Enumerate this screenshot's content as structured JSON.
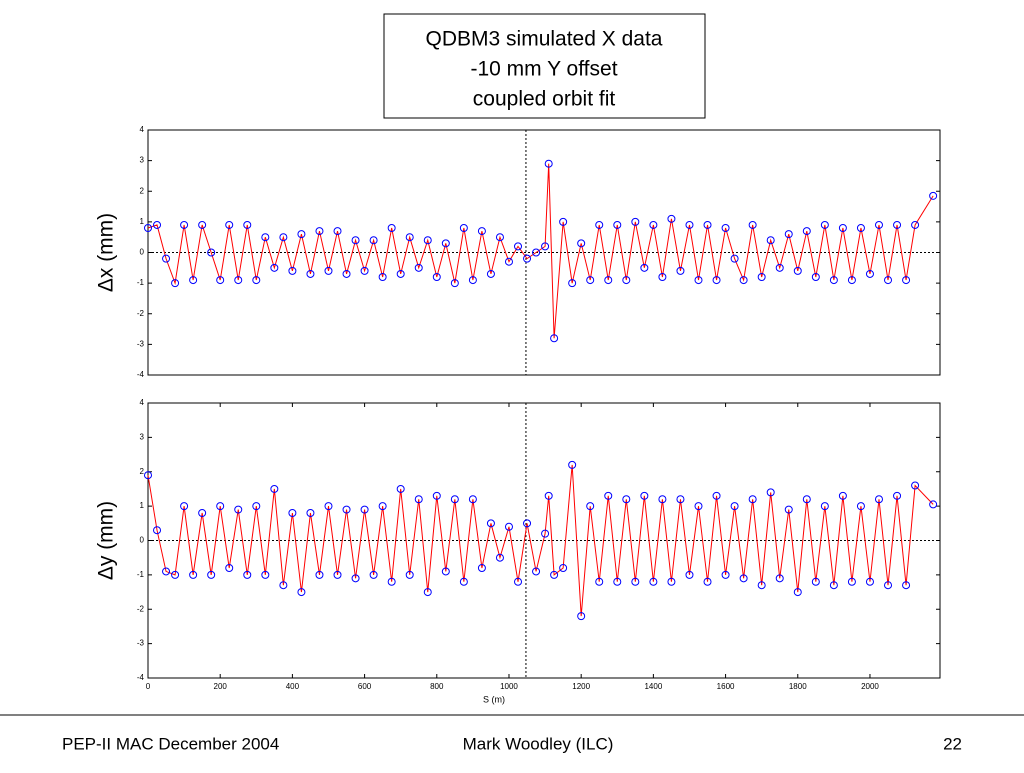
{
  "title_box": [
    "QDBM3 simulated X data",
    "-10 mm Y offset",
    "coupled orbit fit"
  ],
  "chart_data": [
    {
      "type": "line",
      "ylabel": "Δx (mm)",
      "xlim": [
        0,
        2194
      ],
      "ylim": [
        -4,
        4
      ],
      "yticks": [
        -4,
        -3,
        -2,
        -1,
        0,
        1,
        2,
        3,
        4
      ],
      "vline": 1047,
      "hline": 0,
      "marker_color": "#0000ff",
      "line_color": "#ff0000",
      "x": [
        0,
        25,
        50,
        75,
        100,
        125,
        150,
        175,
        200,
        225,
        250,
        275,
        300,
        325,
        350,
        375,
        400,
        425,
        450,
        475,
        500,
        525,
        550,
        575,
        600,
        625,
        650,
        675,
        700,
        725,
        750,
        775,
        800,
        825,
        850,
        875,
        900,
        925,
        950,
        975,
        1000,
        1025,
        1050,
        1075,
        1100,
        1110,
        1125,
        1150,
        1175,
        1200,
        1225,
        1250,
        1275,
        1300,
        1325,
        1350,
        1375,
        1400,
        1425,
        1450,
        1475,
        1500,
        1525,
        1550,
        1575,
        1600,
        1625,
        1650,
        1675,
        1700,
        1725,
        1750,
        1775,
        1800,
        1825,
        1850,
        1875,
        1900,
        1925,
        1950,
        1975,
        2000,
        2025,
        2050,
        2075,
        2100,
        2125,
        2175
      ],
      "values": [
        0.8,
        0.9,
        -0.2,
        -1.0,
        0.9,
        -0.9,
        0.9,
        0.0,
        -0.9,
        0.9,
        -0.9,
        0.9,
        -0.9,
        0.5,
        -0.5,
        0.5,
        -0.6,
        0.6,
        -0.7,
        0.7,
        -0.6,
        0.7,
        -0.7,
        0.4,
        -0.6,
        0.4,
        -0.8,
        0.8,
        -0.7,
        0.5,
        -0.5,
        0.4,
        -0.8,
        0.3,
        -1.0,
        0.8,
        -0.9,
        0.7,
        -0.7,
        0.5,
        -0.3,
        0.2,
        -0.2,
        0.0,
        0.2,
        2.9,
        -2.8,
        1.0,
        -1.0,
        0.3,
        -0.9,
        0.9,
        -0.9,
        0.9,
        -0.9,
        1.0,
        -0.5,
        0.9,
        -0.8,
        1.1,
        -0.6,
        0.9,
        -0.9,
        0.9,
        -0.9,
        0.8,
        -0.2,
        -0.9,
        0.9,
        -0.8,
        0.4,
        -0.5,
        0.6,
        -0.6,
        0.7,
        -0.8,
        0.9,
        -0.9,
        0.8,
        -0.9,
        0.8,
        -0.7,
        0.9,
        -0.9,
        0.9,
        -0.9,
        0.9,
        1.85
      ]
    },
    {
      "type": "line",
      "ylabel": "Δy (mm)",
      "xlabel": "S (m)",
      "xlim": [
        0,
        2194
      ],
      "ylim": [
        -4,
        4
      ],
      "yticks": [
        -4,
        -3,
        -2,
        -1,
        0,
        1,
        2,
        3,
        4
      ],
      "xticks": [
        0,
        200,
        400,
        600,
        800,
        1000,
        1200,
        1400,
        1600,
        1800,
        2000
      ],
      "vline": 1047,
      "hline": 0,
      "marker_color": "#0000ff",
      "line_color": "#ff0000",
      "x": [
        0,
        25,
        50,
        75,
        100,
        125,
        150,
        175,
        200,
        225,
        250,
        275,
        300,
        325,
        350,
        375,
        400,
        425,
        450,
        475,
        500,
        525,
        550,
        575,
        600,
        625,
        650,
        675,
        700,
        725,
        750,
        775,
        800,
        825,
        850,
        875,
        900,
        925,
        950,
        975,
        1000,
        1025,
        1050,
        1075,
        1100,
        1110,
        1125,
        1150,
        1175,
        1200,
        1225,
        1250,
        1275,
        1300,
        1325,
        1350,
        1375,
        1400,
        1425,
        1450,
        1475,
        1500,
        1525,
        1550,
        1575,
        1600,
        1625,
        1650,
        1675,
        1700,
        1725,
        1750,
        1775,
        1800,
        1825,
        1850,
        1875,
        1900,
        1925,
        1950,
        1975,
        2000,
        2025,
        2050,
        2075,
        2100,
        2125,
        2175
      ],
      "values": [
        1.9,
        0.3,
        -0.9,
        -1.0,
        1.0,
        -1.0,
        0.8,
        -1.0,
        1.0,
        -0.8,
        0.9,
        -1.0,
        1.0,
        -1.0,
        1.5,
        -1.3,
        0.8,
        -1.5,
        0.8,
        -1.0,
        1.0,
        -1.0,
        0.9,
        -1.1,
        0.9,
        -1.0,
        1.0,
        -1.2,
        1.5,
        -1.0,
        1.2,
        -1.5,
        1.3,
        -0.9,
        1.2,
        -1.2,
        1.2,
        -0.8,
        0.5,
        -0.5,
        0.4,
        -1.2,
        0.5,
        -0.9,
        0.2,
        1.3,
        -1.0,
        -0.8,
        2.2,
        -2.2,
        1.0,
        -1.2,
        1.3,
        -1.2,
        1.2,
        -1.2,
        1.3,
        -1.2,
        1.2,
        -1.2,
        1.2,
        -1.0,
        1.0,
        -1.2,
        1.3,
        -1.0,
        1.0,
        -1.1,
        1.2,
        -1.3,
        1.4,
        -1.1,
        0.9,
        -1.5,
        1.2,
        -1.2,
        1.0,
        -1.3,
        1.3,
        -1.2,
        1.0,
        -1.2,
        1.2,
        -1.3,
        1.3,
        -1.3,
        1.6,
        1.05
      ]
    }
  ],
  "footer": {
    "left": "PEP-II MAC December 2004",
    "center": "Mark Woodley (ILC)",
    "right": "22"
  }
}
